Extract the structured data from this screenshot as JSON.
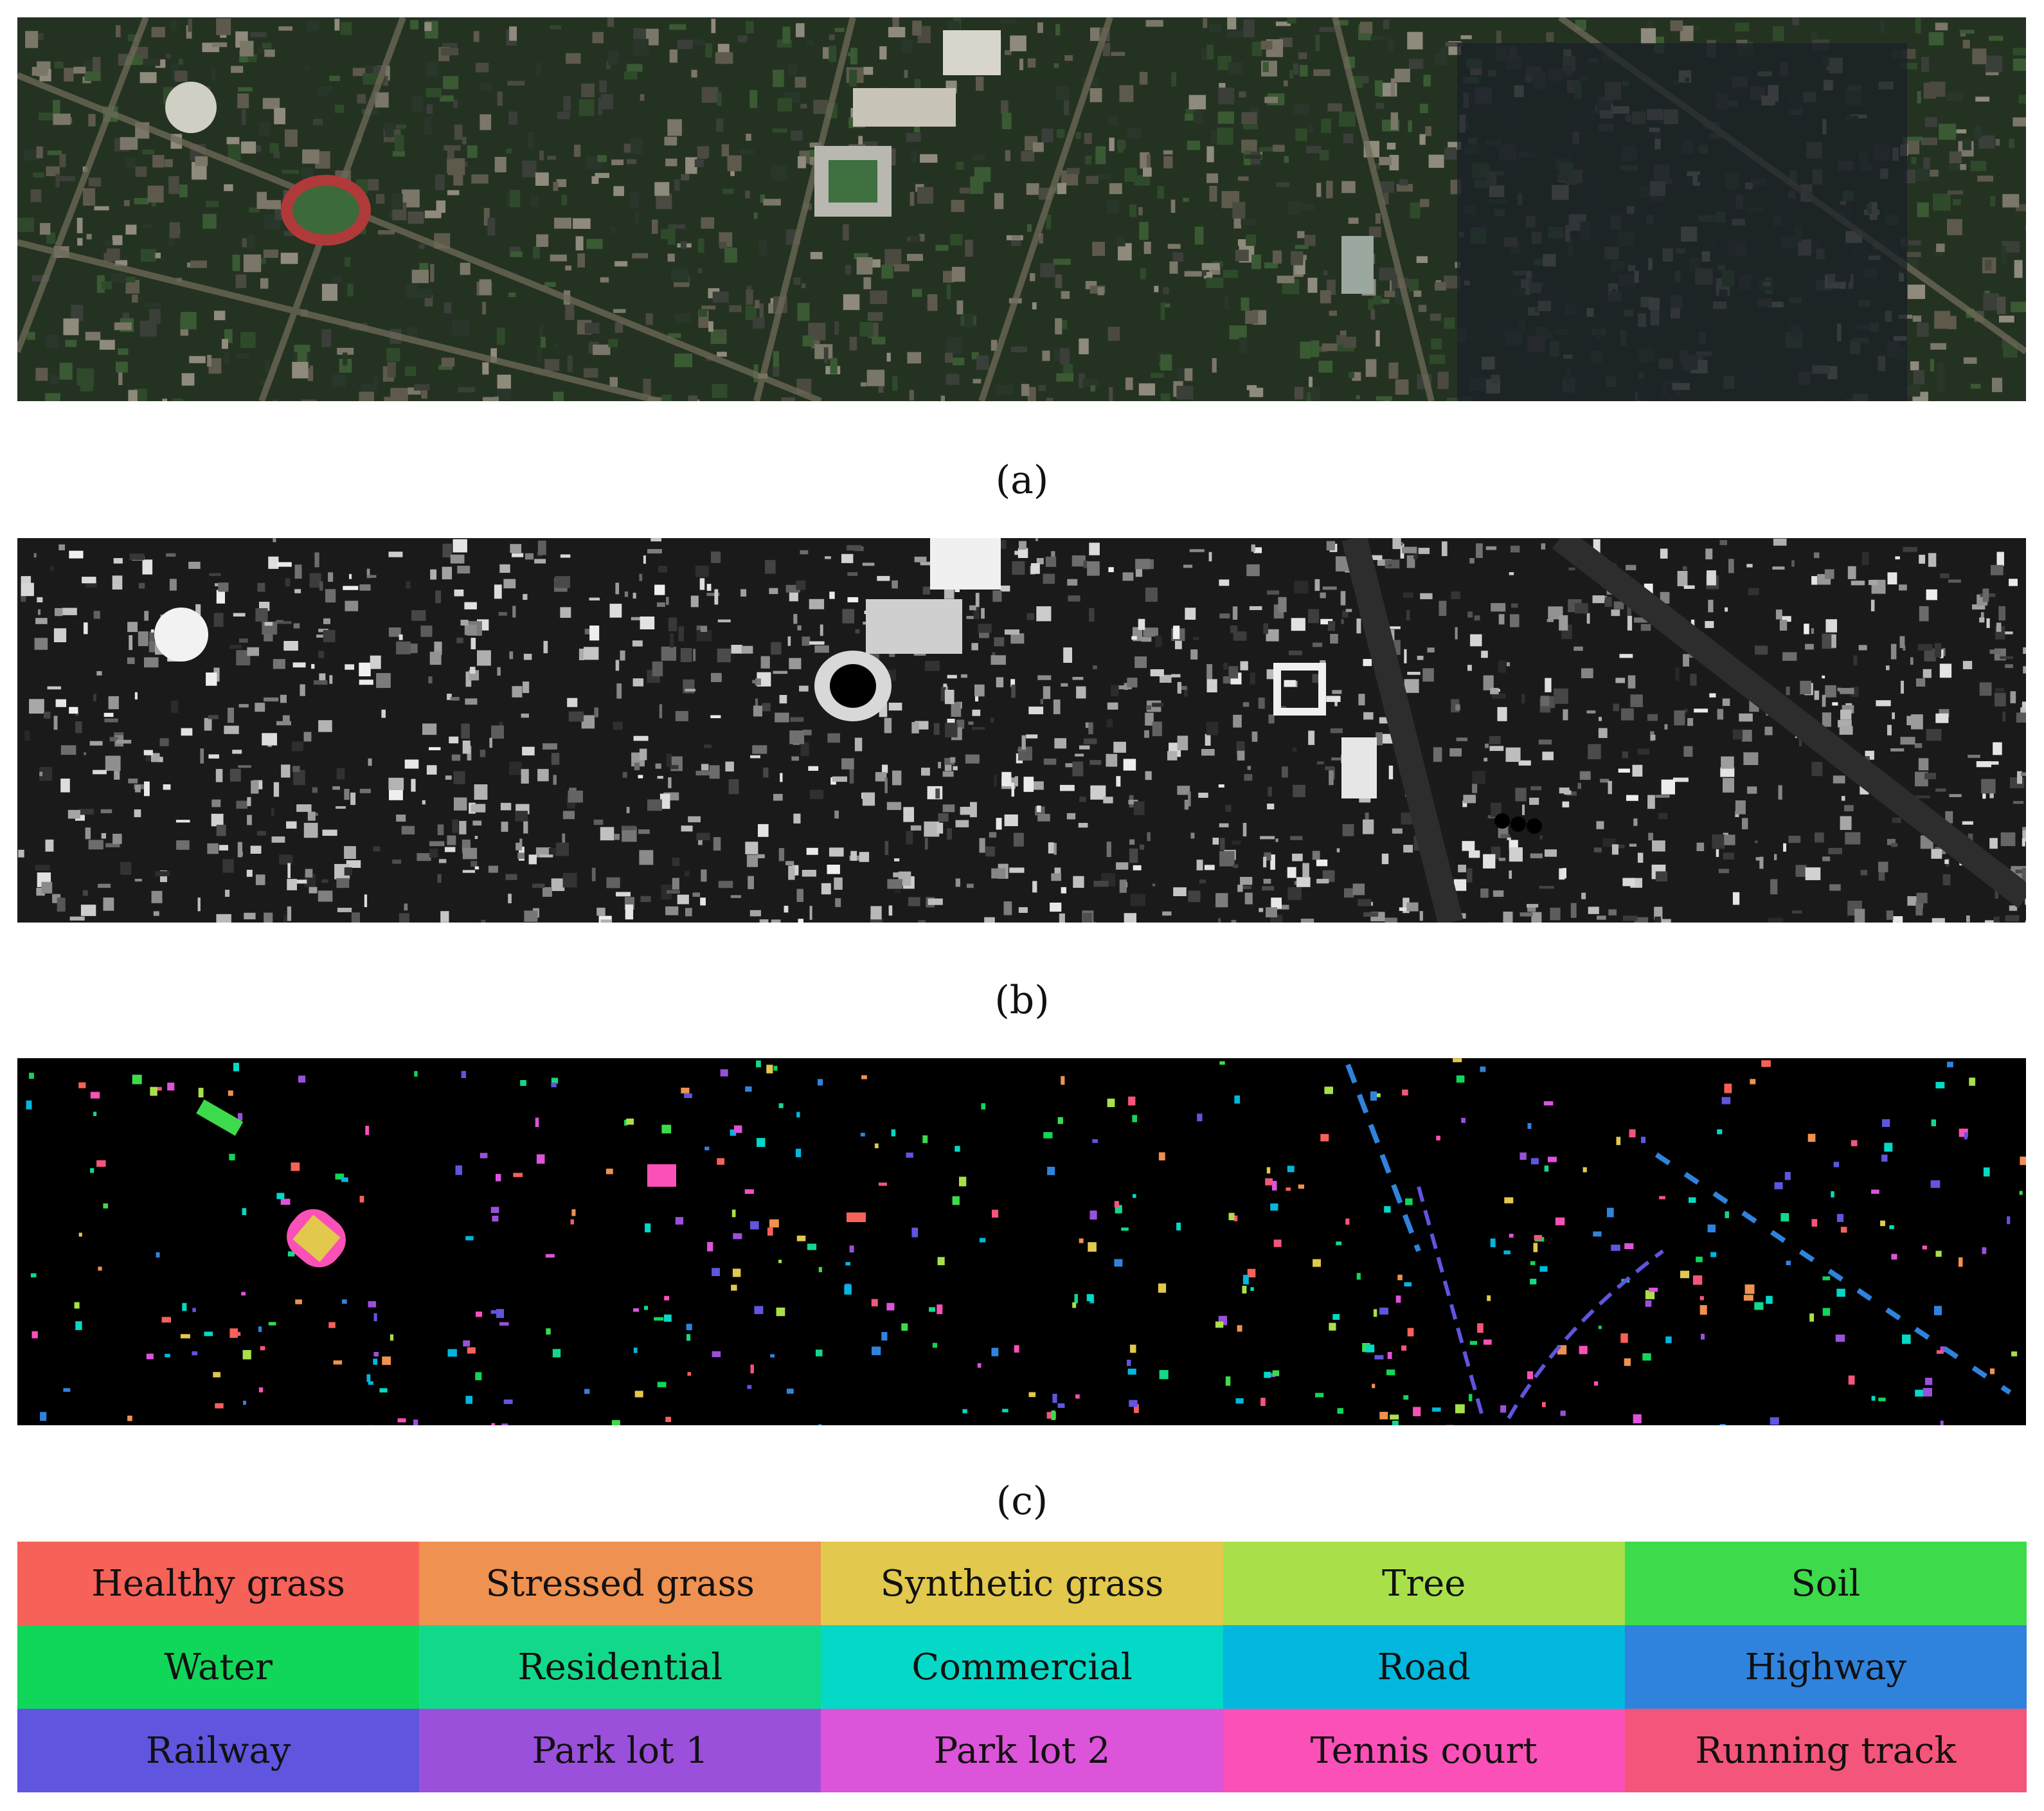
{
  "panels": [
    {
      "caption": "(a)",
      "image": "rgb-satellite-image"
    },
    {
      "caption": "(b)",
      "image": "lidar-grayscale-image"
    },
    {
      "caption": "(c)",
      "image": "ground-truth-class-map"
    }
  ],
  "legend": [
    {
      "label": "Healthy grass",
      "color": "#f66158"
    },
    {
      "label": "Stressed grass",
      "color": "#ef9150"
    },
    {
      "label": "Synthetic grass",
      "color": "#e2c84c"
    },
    {
      "label": "Tree",
      "color": "#a9e04a"
    },
    {
      "label": "Soil",
      "color": "#3ddb4b"
    },
    {
      "label": "Water",
      "color": "#10d65a"
    },
    {
      "label": "Residential",
      "color": "#12d98a"
    },
    {
      "label": "Commercial",
      "color": "#03d9c6"
    },
    {
      "label": "Road",
      "color": "#01b7de"
    },
    {
      "label": "Highway",
      "color": "#3083dd"
    },
    {
      "label": "Railway",
      "color": "#5f55de"
    },
    {
      "label": "Park lot 1",
      "color": "#9b50dc"
    },
    {
      "label": "Park lot 2",
      "color": "#dc54d9"
    },
    {
      "label": "Tennis court",
      "color": "#fb50b7"
    },
    {
      "label": "Running track",
      "color": "#f4557a"
    }
  ]
}
